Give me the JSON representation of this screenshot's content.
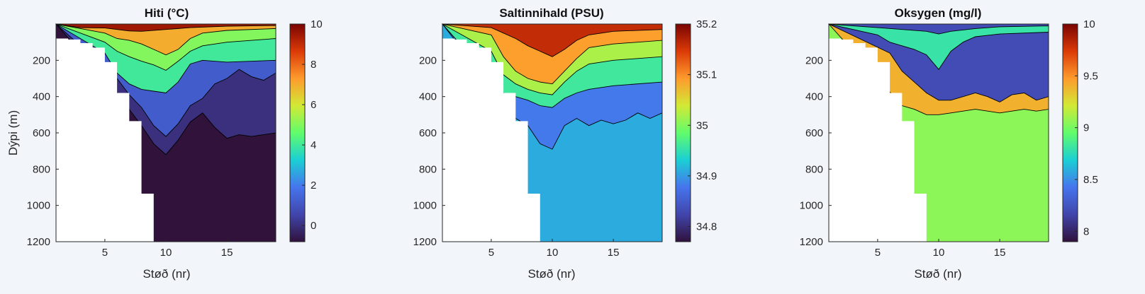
{
  "figure": {
    "ylabel": "Dýpi (m)"
  },
  "chart_data": [
    {
      "type": "heatmap",
      "title": "Hiti (°C)",
      "xlabel": "Støð (nr)",
      "ylabel": "Dýpi (m)",
      "xlim": [
        1,
        19
      ],
      "ylim": [
        1200,
        0
      ],
      "x_ticks": [
        5,
        10,
        15
      ],
      "y_ticks": [
        200,
        400,
        600,
        800,
        1000,
        1200
      ],
      "colorbar": {
        "range": [
          -0.8,
          10
        ],
        "ticks": [
          0,
          2,
          4,
          6,
          8,
          10
        ]
      },
      "bottom_depth": [
        [
          1,
          80
        ],
        [
          2,
          85
        ],
        [
          3,
          105
        ],
        [
          4,
          130
        ],
        [
          5,
          210
        ],
        [
          6,
          380
        ],
        [
          7,
          535
        ],
        [
          8,
          935
        ],
        [
          9,
          1200
        ],
        [
          19,
          1200
        ]
      ],
      "fields": [
        {
          "value": 9.5,
          "profile": [
            [
              1,
              0
            ],
            [
              19,
              0
            ]
          ]
        },
        {
          "value": 7,
          "profile": [
            [
              1,
              0
            ],
            [
              3,
              20
            ],
            [
              5,
              22
            ],
            [
              6,
              30
            ],
            [
              7,
              38
            ],
            [
              8,
              40
            ],
            [
              10,
              30
            ],
            [
              12,
              20
            ],
            [
              15,
              12
            ],
            [
              19,
              8
            ]
          ]
        },
        {
          "value": 5,
          "profile": [
            [
              1,
              0
            ],
            [
              5,
              50
            ],
            [
              6,
              80
            ],
            [
              7,
              90
            ],
            [
              8,
              110
            ],
            [
              9,
              140
            ],
            [
              10,
              170
            ],
            [
              11,
              140
            ],
            [
              12,
              80
            ],
            [
              13,
              50
            ],
            [
              15,
              35
            ],
            [
              19,
              25
            ]
          ]
        },
        {
          "value": 4,
          "profile": [
            [
              1,
              0
            ],
            [
              5,
              100
            ],
            [
              6,
              150
            ],
            [
              7,
              180
            ],
            [
              8,
              205
            ],
            [
              9,
              225
            ],
            [
              10,
              255
            ],
            [
              11,
              205
            ],
            [
              12,
              150
            ],
            [
              13,
              120
            ],
            [
              15,
              100
            ],
            [
              19,
              80
            ]
          ]
        },
        {
          "value": 1.2,
          "profile": [
            [
              1,
              0
            ],
            [
              5,
              160
            ],
            [
              6,
              270
            ],
            [
              7,
              330
            ],
            [
              8,
              360
            ],
            [
              9,
              370
            ],
            [
              10,
              380
            ],
            [
              11,
              320
            ],
            [
              12,
              220
            ],
            [
              13,
              200
            ],
            [
              15,
              210
            ],
            [
              19,
              200
            ]
          ]
        },
        {
          "value": 0,
          "profile": [
            [
              1,
              0
            ],
            [
              6,
              300
            ],
            [
              7,
              390
            ],
            [
              8,
              460
            ],
            [
              9,
              560
            ],
            [
              10,
              620
            ],
            [
              11,
              550
            ],
            [
              12,
              450
            ],
            [
              13,
              410
            ],
            [
              14,
              330
            ],
            [
              15,
              300
            ],
            [
              16,
              250
            ],
            [
              17,
              290
            ],
            [
              18,
              310
            ],
            [
              19,
              270
            ]
          ]
        },
        {
          "value": -0.8,
          "profile": [
            [
              1,
              0
            ],
            [
              6,
              380
            ],
            [
              7,
              470
            ],
            [
              8,
              560
            ],
            [
              9,
              660
            ],
            [
              10,
              720
            ],
            [
              11,
              640
            ],
            [
              12,
              540
            ],
            [
              13,
              490
            ],
            [
              14,
              570
            ],
            [
              15,
              630
            ],
            [
              16,
              610
            ],
            [
              17,
              620
            ],
            [
              18,
              610
            ],
            [
              19,
              600
            ]
          ]
        }
      ]
    },
    {
      "type": "heatmap",
      "title": "Saltinnihald (PSU)",
      "xlabel": "Støð (nr)",
      "ylabel": "",
      "xlim": [
        1,
        19
      ],
      "ylim": [
        1200,
        0
      ],
      "x_ticks": [
        5,
        10,
        15
      ],
      "y_ticks": [
        200,
        400,
        600,
        800,
        1000,
        1200
      ],
      "colorbar": {
        "range": [
          34.77,
          35.2
        ],
        "ticks": [
          34.8,
          34.9,
          35,
          35.1,
          35.2
        ]
      },
      "bottom_depth": [
        [
          1,
          80
        ],
        [
          2,
          85
        ],
        [
          3,
          105
        ],
        [
          4,
          130
        ],
        [
          5,
          210
        ],
        [
          6,
          380
        ],
        [
          7,
          535
        ],
        [
          8,
          935
        ],
        [
          9,
          1200
        ],
        [
          19,
          1200
        ]
      ],
      "fields": [
        {
          "value": 35.16,
          "profile": [
            [
              1,
              0
            ],
            [
              19,
              0
            ]
          ]
        },
        {
          "value": 35.09,
          "profile": [
            [
              1,
              0
            ],
            [
              5,
              20
            ],
            [
              6,
              50
            ],
            [
              7,
              80
            ],
            [
              8,
              120
            ],
            [
              9,
              150
            ],
            [
              10,
              180
            ],
            [
              11,
              140
            ],
            [
              12,
              90
            ],
            [
              13,
              60
            ],
            [
              15,
              40
            ],
            [
              19,
              30
            ]
          ]
        },
        {
          "value": 35.02,
          "profile": [
            [
              1,
              0
            ],
            [
              5,
              60
            ],
            [
              6,
              180
            ],
            [
              7,
              260
            ],
            [
              8,
              300
            ],
            [
              9,
              320
            ],
            [
              10,
              330
            ],
            [
              11,
              260
            ],
            [
              12,
              190
            ],
            [
              13,
              130
            ],
            [
              15,
              110
            ],
            [
              19,
              90
            ]
          ]
        },
        {
          "value": 34.96,
          "profile": [
            [
              1,
              0
            ],
            [
              5,
              150
            ],
            [
              6,
              280
            ],
            [
              7,
              330
            ],
            [
              8,
              360
            ],
            [
              9,
              380
            ],
            [
              10,
              390
            ],
            [
              11,
              320
            ],
            [
              12,
              260
            ],
            [
              13,
              220
            ],
            [
              15,
              200
            ],
            [
              19,
              180
            ]
          ]
        },
        {
          "value": 34.88,
          "profile": [
            [
              1,
              0
            ],
            [
              6,
              380
            ],
            [
              7,
              400
            ],
            [
              8,
              420
            ],
            [
              9,
              450
            ],
            [
              10,
              460
            ],
            [
              11,
              410
            ],
            [
              12,
              380
            ],
            [
              13,
              360
            ],
            [
              15,
              340
            ],
            [
              19,
              320
            ]
          ]
        },
        {
          "value": 34.91,
          "profile": [
            [
              1,
              0
            ],
            [
              7,
              520
            ],
            [
              8,
              560
            ],
            [
              9,
              660
            ],
            [
              10,
              690
            ],
            [
              11,
              560
            ],
            [
              12,
              520
            ],
            [
              13,
              560
            ],
            [
              14,
              530
            ],
            [
              15,
              550
            ],
            [
              16,
              530
            ],
            [
              17,
              490
            ],
            [
              18,
              520
            ],
            [
              19,
              490
            ]
          ]
        }
      ]
    },
    {
      "type": "heatmap",
      "title": "Oksygen (mg/l)",
      "xlabel": "Støð (nr)",
      "ylabel": "",
      "xlim": [
        1,
        19
      ],
      "ylim": [
        1200,
        0
      ],
      "x_ticks": [
        5,
        10,
        15
      ],
      "y_ticks": [
        200,
        400,
        600,
        800,
        1000,
        1200
      ],
      "colorbar": {
        "range": [
          7.9,
          10
        ],
        "ticks": [
          8,
          8.5,
          9,
          9.5,
          10
        ]
      },
      "bottom_depth": [
        [
          1,
          80
        ],
        [
          2,
          85
        ],
        [
          3,
          105
        ],
        [
          4,
          130
        ],
        [
          5,
          210
        ],
        [
          6,
          380
        ],
        [
          7,
          535
        ],
        [
          8,
          935
        ],
        [
          9,
          1200
        ],
        [
          19,
          1200
        ]
      ],
      "fields": [
        {
          "value": 8.2,
          "profile": [
            [
              1,
              0
            ],
            [
              19,
              0
            ]
          ]
        },
        {
          "value": 8.8,
          "profile": [
            [
              1,
              0
            ],
            [
              5,
              20
            ],
            [
              7,
              30
            ],
            [
              9,
              40
            ],
            [
              10,
              55
            ],
            [
              11,
              40
            ],
            [
              13,
              25
            ],
            [
              15,
              15
            ],
            [
              19,
              10
            ]
          ]
        },
        {
          "value": 8.2,
          "profile": [
            [
              1,
              0
            ],
            [
              5,
              60
            ],
            [
              6,
              100
            ],
            [
              7,
              120
            ],
            [
              8,
              140
            ],
            [
              9,
              170
            ],
            [
              10,
              250
            ],
            [
              11,
              150
            ],
            [
              12,
              100
            ],
            [
              13,
              70
            ],
            [
              15,
              55
            ],
            [
              19,
              45
            ]
          ]
        },
        {
          "value": 9.4,
          "profile": [
            [
              1,
              0
            ],
            [
              6,
              160
            ],
            [
              7,
              260
            ],
            [
              8,
              320
            ],
            [
              9,
              380
            ],
            [
              10,
              420
            ],
            [
              11,
              420
            ],
            [
              12,
              400
            ],
            [
              13,
              380
            ],
            [
              14,
              400
            ],
            [
              15,
              430
            ],
            [
              16,
              390
            ],
            [
              17,
              380
            ],
            [
              18,
              420
            ],
            [
              19,
              400
            ]
          ]
        },
        {
          "value": 9.05,
          "profile": [
            [
              1,
              0
            ],
            [
              7,
              450
            ],
            [
              8,
              470
            ],
            [
              9,
              500
            ],
            [
              10,
              500
            ],
            [
              11,
              490
            ],
            [
              12,
              480
            ],
            [
              13,
              470
            ],
            [
              14,
              480
            ],
            [
              15,
              490
            ],
            [
              16,
              480
            ],
            [
              17,
              470
            ],
            [
              18,
              480
            ],
            [
              19,
              470
            ]
          ]
        }
      ]
    }
  ]
}
